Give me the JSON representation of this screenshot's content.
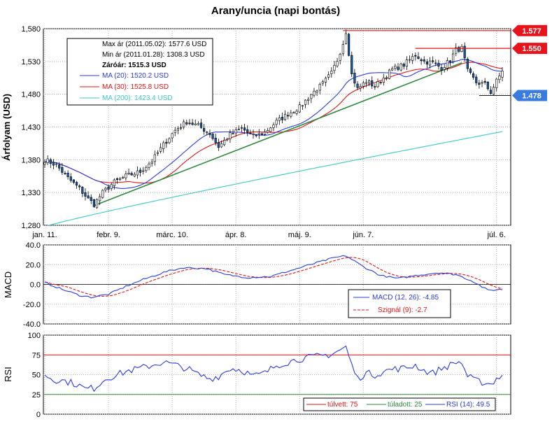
{
  "chart_data": {
    "type": "candlestick",
    "title": "Arany/uncia (napi bontás)",
    "ylabel": "Árfolyam (USD)",
    "ylim": [
      1280,
      1580
    ],
    "yticks": [
      "1,580",
      "1,530",
      "1,480",
      "1,430",
      "1,380",
      "1,330",
      "1,280"
    ],
    "ytick_values": [
      1580,
      1530,
      1480,
      1430,
      1380,
      1330,
      1280
    ],
    "x_tick_labels": [
      "jan. 11.",
      "febr. 9.",
      "márc. 10.",
      "ápr. 8.",
      "máj. 9.",
      "jún. 7.",
      "júl. 6."
    ],
    "grid": true,
    "legend": {
      "max": "Max ár (2011.05.02): 1577.6 USD",
      "min": "Min ár (2011.01.28): 1308.3 USD",
      "close": "Záróár: 1515.3 USD",
      "ma20": "MA (20): 1520.2 USD",
      "ma30": "MA (30): 1525.8 USD",
      "ma200": "MA (200): 1423.4 USD"
    },
    "price_tags": [
      {
        "label": "1.577",
        "value": 1577,
        "color": "#e8141c"
      },
      {
        "label": "1.550",
        "value": 1550,
        "color": "#e8141c"
      },
      {
        "label": "1.478",
        "value": 1478,
        "color": "#3a7be0"
      }
    ],
    "close_anchors": [
      [
        0,
        1380
      ],
      [
        4,
        1372
      ],
      [
        8,
        1352
      ],
      [
        12,
        1336
      ],
      [
        15,
        1320
      ],
      [
        17,
        1312
      ],
      [
        20,
        1330
      ],
      [
        24,
        1346
      ],
      [
        28,
        1355
      ],
      [
        33,
        1362
      ],
      [
        37,
        1378
      ],
      [
        41,
        1403
      ],
      [
        45,
        1425
      ],
      [
        49,
        1438
      ],
      [
        53,
        1432
      ],
      [
        57,
        1420
      ],
      [
        60,
        1400
      ],
      [
        64,
        1418
      ],
      [
        68,
        1428
      ],
      [
        72,
        1416
      ],
      [
        76,
        1422
      ],
      [
        80,
        1438
      ],
      [
        84,
        1450
      ],
      [
        88,
        1460
      ],
      [
        92,
        1480
      ],
      [
        96,
        1496
      ],
      [
        99,
        1512
      ],
      [
        101,
        1532
      ],
      [
        103,
        1558
      ],
      [
        104,
        1576
      ],
      [
        106,
        1510
      ],
      [
        108,
        1488
      ],
      [
        111,
        1500
      ],
      [
        114,
        1492
      ],
      [
        117,
        1505
      ],
      [
        120,
        1518
      ],
      [
        124,
        1525
      ],
      [
        128,
        1540
      ],
      [
        131,
        1530
      ],
      [
        134,
        1528
      ],
      [
        137,
        1520
      ],
      [
        140,
        1532
      ],
      [
        142,
        1548
      ],
      [
        144,
        1550
      ],
      [
        146,
        1515
      ],
      [
        149,
        1498
      ],
      [
        152,
        1495
      ],
      [
        154,
        1483
      ],
      [
        156,
        1500
      ],
      [
        158,
        1515
      ]
    ],
    "macd": {
      "ylim": [
        -40,
        40
      ],
      "yticks": [
        "40.0",
        "20.0",
        "0.0",
        "-20.0",
        "-40.0"
      ],
      "ytick_values": [
        40,
        20,
        0,
        -20,
        -40
      ],
      "ylabel": "MACD",
      "anchors": [
        [
          0,
          2
        ],
        [
          6,
          -5
        ],
        [
          12,
          -11
        ],
        [
          16,
          -13
        ],
        [
          22,
          -10
        ],
        [
          28,
          -2
        ],
        [
          34,
          5
        ],
        [
          42,
          13
        ],
        [
          48,
          17
        ],
        [
          56,
          16
        ],
        [
          62,
          10
        ],
        [
          70,
          7
        ],
        [
          78,
          8
        ],
        [
          86,
          15
        ],
        [
          94,
          22
        ],
        [
          100,
          27
        ],
        [
          104,
          29
        ],
        [
          110,
          18
        ],
        [
          116,
          9
        ],
        [
          122,
          6
        ],
        [
          128,
          9
        ],
        [
          136,
          12
        ],
        [
          142,
          10
        ],
        [
          148,
          3
        ],
        [
          153,
          -6
        ],
        [
          158,
          -5
        ]
      ],
      "legend_macd": "MACD (12, 26): -4.85",
      "legend_signal": "Szignál (9): -2.7"
    },
    "rsi": {
      "ylim": [
        0,
        100
      ],
      "yticks": [
        "100",
        "75",
        "50",
        "25",
        "0"
      ],
      "ytick_values": [
        100,
        75,
        50,
        25,
        0
      ],
      "ylabel": "RSI",
      "overbought": 75,
      "oversold": 25,
      "anchors": [
        [
          0,
          50
        ],
        [
          3,
          44
        ],
        [
          7,
          42
        ],
        [
          11,
          38
        ],
        [
          14,
          32
        ],
        [
          17,
          33
        ],
        [
          21,
          45
        ],
        [
          25,
          50
        ],
        [
          29,
          55
        ],
        [
          33,
          58
        ],
        [
          37,
          62
        ],
        [
          41,
          66
        ],
        [
          45,
          62
        ],
        [
          49,
          58
        ],
        [
          53,
          50
        ],
        [
          57,
          45
        ],
        [
          60,
          48
        ],
        [
          64,
          58
        ],
        [
          68,
          56
        ],
        [
          72,
          48
        ],
        [
          76,
          52
        ],
        [
          80,
          62
        ],
        [
          84,
          66
        ],
        [
          88,
          70
        ],
        [
          92,
          72
        ],
        [
          96,
          74
        ],
        [
          99,
          76
        ],
        [
          103,
          83
        ],
        [
          104,
          85
        ],
        [
          106,
          62
        ],
        [
          108,
          45
        ],
        [
          111,
          52
        ],
        [
          114,
          50
        ],
        [
          117,
          54
        ],
        [
          120,
          57
        ],
        [
          124,
          58
        ],
        [
          128,
          62
        ],
        [
          131,
          55
        ],
        [
          134,
          52
        ],
        [
          137,
          58
        ],
        [
          140,
          62
        ],
        [
          142,
          66
        ],
        [
          144,
          65
        ],
        [
          146,
          48
        ],
        [
          149,
          42
        ],
        [
          152,
          40
        ],
        [
          154,
          38
        ],
        [
          156,
          45
        ],
        [
          158,
          49
        ]
      ],
      "legend_ob": "túlvett: 75",
      "legend_os": "túladott: 25",
      "legend_rsi": "RSI (14): 49.5"
    },
    "colors": {
      "candle_up": "#ffffff",
      "candle_down": "#1a5ca8",
      "wick": "#000000",
      "ma20": "#2a3cdc",
      "ma30": "#e01414",
      "ma200": "#3ec8c8",
      "trend": "#2e8a3c",
      "resistance": "#e01414",
      "support": "#1a1a1a",
      "macd_line": "#2a3cdc",
      "signal_line": "#e01414",
      "rsi_line": "#2a3cdc",
      "overbought_line": "#e01414",
      "oversold_line": "#2e8a3c"
    }
  }
}
